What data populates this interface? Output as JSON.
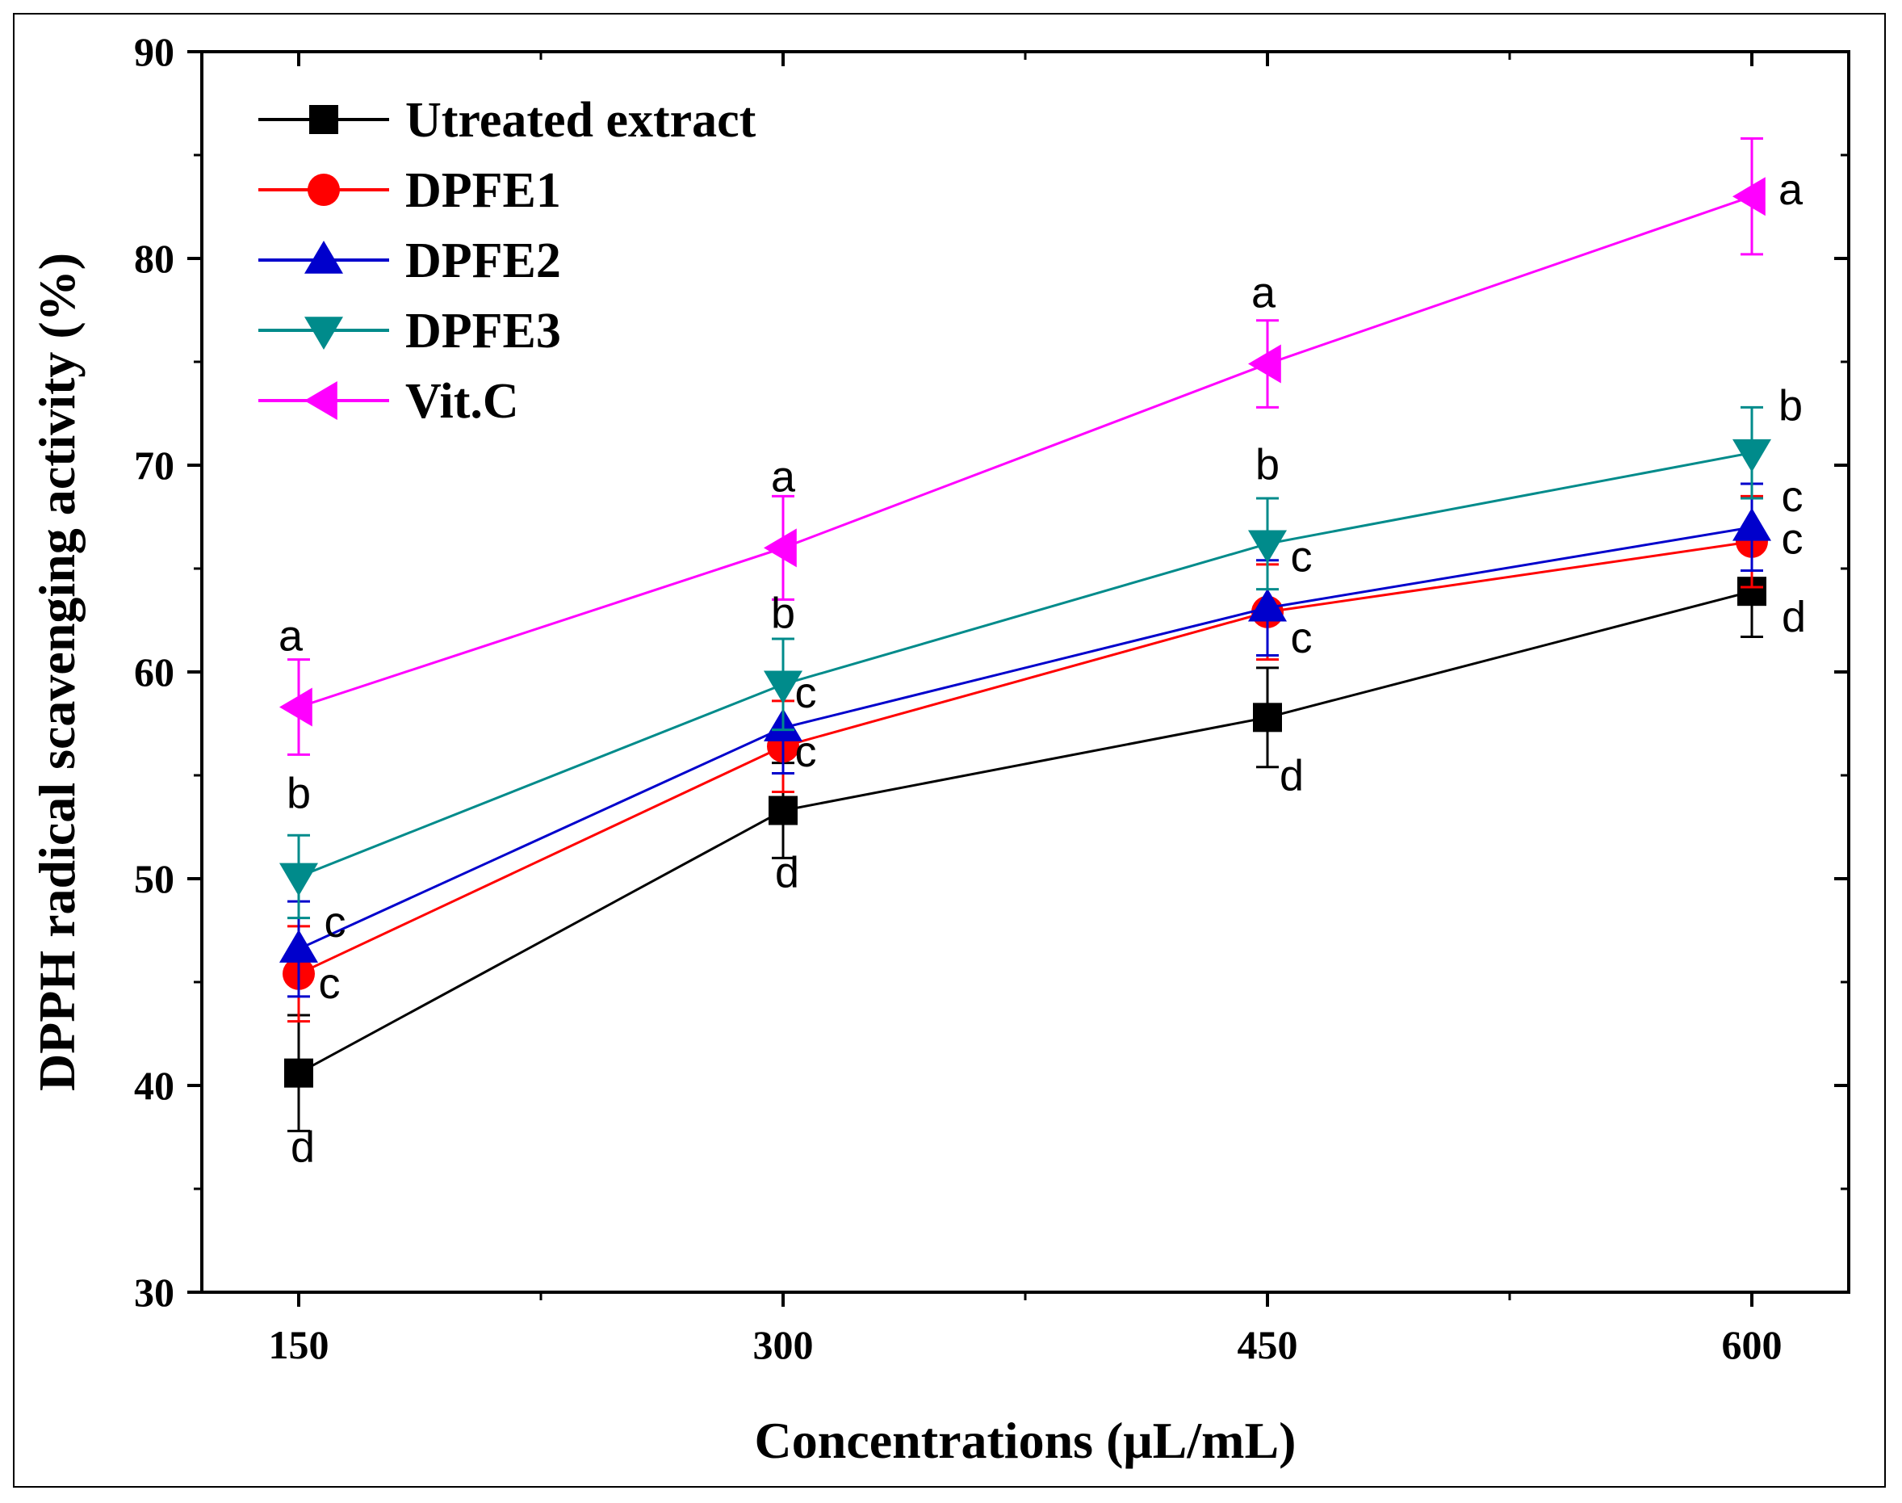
{
  "chart_data": {
    "type": "line",
    "xlabel": "Concentrations (μL/mL)",
    "ylabel": "DPPH radical scavenging activity (%)",
    "x": [
      150,
      300,
      450,
      600
    ],
    "x_ticks": [
      "150",
      "300",
      "450",
      "600"
    ],
    "xlim": [
      120,
      630
    ],
    "ylim": [
      30,
      90
    ],
    "y_ticks": [
      "30",
      "40",
      "50",
      "60",
      "70",
      "80",
      "90"
    ],
    "grid": false,
    "legend_position": "top-left",
    "series": [
      {
        "name": "Utreated extract",
        "color": "#000000",
        "marker": "square",
        "values": [
          40.6,
          53.3,
          57.8,
          63.9
        ],
        "errors": [
          2.8,
          2.3,
          2.4,
          2.2
        ],
        "letters": [
          "d",
          "d",
          "d",
          "d"
        ]
      },
      {
        "name": "DPFE1",
        "color": "#ff0000",
        "marker": "circle",
        "values": [
          45.4,
          56.4,
          62.9,
          66.3
        ],
        "errors": [
          2.3,
          2.2,
          2.3,
          2.2
        ],
        "letters": [
          "c",
          "c",
          "c",
          "c"
        ]
      },
      {
        "name": "DPFE2",
        "color": "#0000cc",
        "marker": "triangle-up",
        "values": [
          46.6,
          57.3,
          63.1,
          67.0
        ],
        "errors": [
          2.3,
          2.2,
          2.3,
          2.1
        ],
        "letters": [
          "c",
          "c",
          "c",
          "c"
        ]
      },
      {
        "name": "DPFE3",
        "color": "#008b8b",
        "marker": "triangle-down",
        "values": [
          50.1,
          59.4,
          66.2,
          70.6
        ],
        "errors": [
          2.0,
          2.2,
          2.2,
          2.2
        ],
        "letters": [
          "b",
          "b",
          "b",
          "b"
        ]
      },
      {
        "name": "Vit.C",
        "color": "#ff00ff",
        "marker": "triangle-left",
        "values": [
          58.3,
          66.0,
          74.9,
          83.0
        ],
        "errors": [
          2.3,
          2.5,
          2.1,
          2.8
        ],
        "letters": [
          "a",
          "a",
          "a",
          "a"
        ]
      }
    ]
  }
}
